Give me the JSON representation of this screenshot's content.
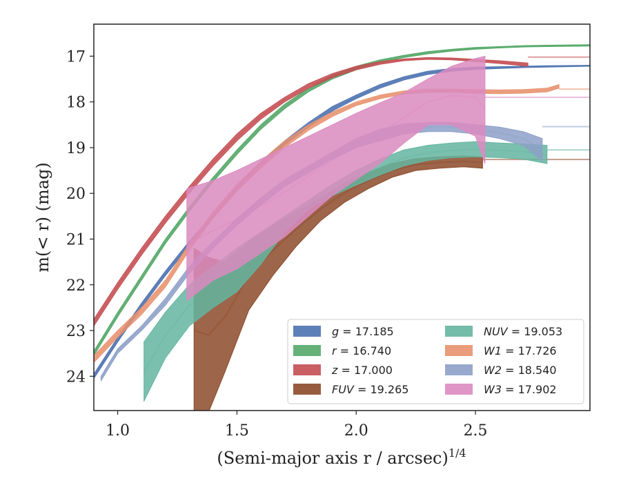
{
  "chart_data": {
    "type": "area",
    "xlabel": "(Semi-major axis r / arcsec)",
    "xlabel_sup": "1/4",
    "ylabel": "m(< r) (mag)",
    "xlim": [
      0.9,
      2.98
    ],
    "ylim": [
      24.75,
      16.3
    ],
    "y_inverted": true,
    "grid": false,
    "legend_position": "lower-right",
    "x_ticks": [
      1.0,
      1.5,
      2.0,
      2.5
    ],
    "x_tick_labels": [
      "1.0",
      "1.5",
      "2.0",
      "2.5"
    ],
    "y_ticks": [
      17,
      18,
      19,
      20,
      21,
      22,
      23,
      24
    ],
    "y_tick_labels": [
      "17",
      "18",
      "19",
      "20",
      "21",
      "22",
      "23",
      "24"
    ],
    "series": [
      {
        "name": "g = 17.185",
        "label_var": "g",
        "label_val": "17.185",
        "color": "#4c72b0",
        "asymptote": 17.21,
        "x": [
          0.9,
          1.0,
          1.1,
          1.2,
          1.3,
          1.4,
          1.5,
          1.6,
          1.7,
          1.8,
          1.9,
          2.0,
          2.1,
          2.2,
          2.3,
          2.4,
          2.5,
          2.6,
          2.7,
          2.8,
          2.98
        ],
        "lo": [
          23.95,
          23.15,
          22.4,
          21.7,
          21.05,
          20.45,
          19.85,
          19.3,
          18.85,
          18.45,
          18.1,
          17.85,
          17.62,
          17.45,
          17.33,
          17.27,
          17.24,
          17.23,
          17.22,
          17.21,
          17.2
        ],
        "hi": [
          24.05,
          23.25,
          22.5,
          21.8,
          21.15,
          20.55,
          19.95,
          19.4,
          18.95,
          18.55,
          18.2,
          17.93,
          17.7,
          17.52,
          17.4,
          17.33,
          17.29,
          17.27,
          17.25,
          17.24,
          17.22
        ]
      },
      {
        "name": "r = 16.740",
        "label_var": "r",
        "label_val": "16.740",
        "color": "#55a868",
        "asymptote": 16.75,
        "x": [
          0.9,
          1.0,
          1.1,
          1.2,
          1.3,
          1.4,
          1.5,
          1.6,
          1.7,
          1.8,
          1.9,
          2.0,
          2.1,
          2.2,
          2.3,
          2.4,
          2.5,
          2.6,
          2.7,
          2.8,
          2.98
        ],
        "lo": [
          23.45,
          22.6,
          21.8,
          21.0,
          20.3,
          19.65,
          19.05,
          18.5,
          18.05,
          17.7,
          17.42,
          17.22,
          17.08,
          16.98,
          16.9,
          16.85,
          16.81,
          16.79,
          16.77,
          16.76,
          16.75
        ],
        "hi": [
          23.55,
          22.7,
          21.9,
          21.1,
          20.4,
          19.75,
          19.15,
          18.6,
          18.15,
          17.78,
          17.5,
          17.3,
          17.14,
          17.03,
          16.95,
          16.89,
          16.85,
          16.82,
          16.8,
          16.79,
          16.78
        ]
      },
      {
        "name": "z = 17.000",
        "label_var": "z",
        "label_val": "17.000",
        "color": "#c44e52",
        "asymptote": 17.02,
        "x": [
          0.9,
          1.0,
          1.1,
          1.2,
          1.3,
          1.4,
          1.5,
          1.6,
          1.7,
          1.8,
          1.9,
          2.0,
          2.1,
          2.2,
          2.3,
          2.4,
          2.5,
          2.6,
          2.72
        ],
        "lo": [
          22.75,
          21.95,
          21.2,
          20.5,
          19.85,
          19.25,
          18.7,
          18.25,
          17.9,
          17.6,
          17.38,
          17.22,
          17.12,
          17.06,
          17.03,
          17.04,
          17.07,
          17.1,
          17.15
        ],
        "hi": [
          22.9,
          22.1,
          21.35,
          20.65,
          20.0,
          19.4,
          18.85,
          18.38,
          18.0,
          17.7,
          17.47,
          17.3,
          17.18,
          17.1,
          17.07,
          17.08,
          17.12,
          17.16,
          17.22
        ]
      },
      {
        "name": "FUV = 19.265",
        "label_var": "FUV",
        "label_val": "19.265",
        "color": "#8c4a2a",
        "asymptote": 19.26,
        "x": [
          1.32,
          1.38,
          1.45,
          1.55,
          1.65,
          1.75,
          1.85,
          1.95,
          2.05,
          2.15,
          2.25,
          2.35,
          2.45,
          2.53
        ],
        "lo": [
          21.2,
          21.4,
          21.5,
          21.05,
          20.7,
          20.4,
          20.1,
          19.78,
          19.55,
          19.35,
          19.24,
          19.2,
          19.18,
          19.2
        ],
        "hi": [
          24.8,
          24.8,
          23.9,
          22.55,
          21.8,
          21.15,
          20.6,
          20.2,
          19.9,
          19.65,
          19.5,
          19.45,
          19.42,
          19.45
        ]
      },
      {
        "name": "NUV = 19.053",
        "label_var": "NUV",
        "label_val": "19.053",
        "color": "#64b5a0",
        "asymptote": 19.05,
        "x": [
          1.11,
          1.2,
          1.3,
          1.4,
          1.5,
          1.6,
          1.7,
          1.8,
          1.9,
          2.0,
          2.1,
          2.2,
          2.3,
          2.4,
          2.5,
          2.6,
          2.7,
          2.8
        ],
        "lo": [
          23.25,
          22.6,
          22.0,
          21.6,
          21.2,
          20.85,
          20.5,
          20.15,
          19.8,
          19.5,
          19.25,
          19.05,
          18.95,
          18.9,
          18.87,
          18.9,
          18.92,
          18.95
        ],
        "hi": [
          24.55,
          23.6,
          22.9,
          22.5,
          22.15,
          21.55,
          20.85,
          20.35,
          20.05,
          19.82,
          19.6,
          19.4,
          19.28,
          19.22,
          19.2,
          19.22,
          19.25,
          19.35
        ]
      },
      {
        "name": "W1 = 17.726",
        "label_var": "W1",
        "label_val": "17.726",
        "color": "#e8926e",
        "asymptote": 17.72,
        "x": [
          0.9,
          1.0,
          1.1,
          1.2,
          1.3,
          1.4,
          1.5,
          1.6,
          1.7,
          1.8,
          1.9,
          2.0,
          2.1,
          2.2,
          2.3,
          2.4,
          2.5,
          2.6,
          2.7,
          2.8,
          2.85
        ],
        "lo": [
          23.55,
          23.0,
          22.5,
          21.9,
          21.1,
          20.4,
          19.8,
          19.3,
          18.85,
          18.5,
          18.22,
          18.0,
          17.85,
          17.76,
          17.72,
          17.72,
          17.73,
          17.74,
          17.73,
          17.7,
          17.62
        ],
        "hi": [
          23.7,
          23.15,
          22.65,
          22.05,
          21.25,
          20.55,
          19.95,
          19.45,
          19.0,
          18.62,
          18.32,
          18.08,
          17.93,
          17.83,
          17.79,
          17.79,
          17.81,
          17.82,
          17.81,
          17.78,
          17.7
        ]
      },
      {
        "name": "W2 = 18.540",
        "label_var": "W2",
        "label_val": "18.540",
        "color": "#8da0c8",
        "asymptote": 18.54,
        "x": [
          0.93,
          1.0,
          1.1,
          1.2,
          1.3,
          1.4,
          1.5,
          1.6,
          1.7,
          1.8,
          1.9,
          2.0,
          2.1,
          2.2,
          2.3,
          2.4,
          2.5,
          2.6,
          2.7,
          2.78
        ],
        "lo": [
          24.0,
          23.4,
          22.9,
          22.3,
          21.6,
          21.05,
          20.55,
          20.1,
          19.7,
          19.4,
          19.1,
          18.8,
          18.6,
          18.48,
          18.45,
          18.45,
          18.5,
          18.55,
          18.65,
          18.8
        ],
        "hi": [
          24.1,
          23.5,
          23.0,
          22.45,
          21.75,
          21.2,
          20.7,
          20.25,
          19.85,
          19.55,
          19.25,
          19.0,
          18.85,
          18.7,
          18.65,
          18.65,
          18.7,
          18.8,
          18.95,
          19.3
        ]
      },
      {
        "name": "W3 = 17.902",
        "label_var": "W3",
        "label_val": "17.902",
        "color": "#db8bc0",
        "asymptote": 17.9,
        "x": [
          1.29,
          1.35,
          1.4,
          1.5,
          1.6,
          1.7,
          1.8,
          1.9,
          2.0,
          2.1,
          2.2,
          2.3,
          2.4,
          2.5,
          2.54
        ],
        "lo": [
          19.9,
          19.8,
          19.72,
          19.5,
          19.25,
          19.0,
          18.75,
          18.5,
          18.25,
          18.02,
          17.8,
          17.5,
          17.22,
          17.05,
          17.0
        ],
        "hi": [
          22.35,
          22.1,
          21.9,
          21.65,
          21.3,
          20.95,
          20.5,
          20.05,
          19.7,
          19.35,
          18.9,
          18.5,
          18.5,
          18.75,
          19.35
        ]
      }
    ]
  }
}
